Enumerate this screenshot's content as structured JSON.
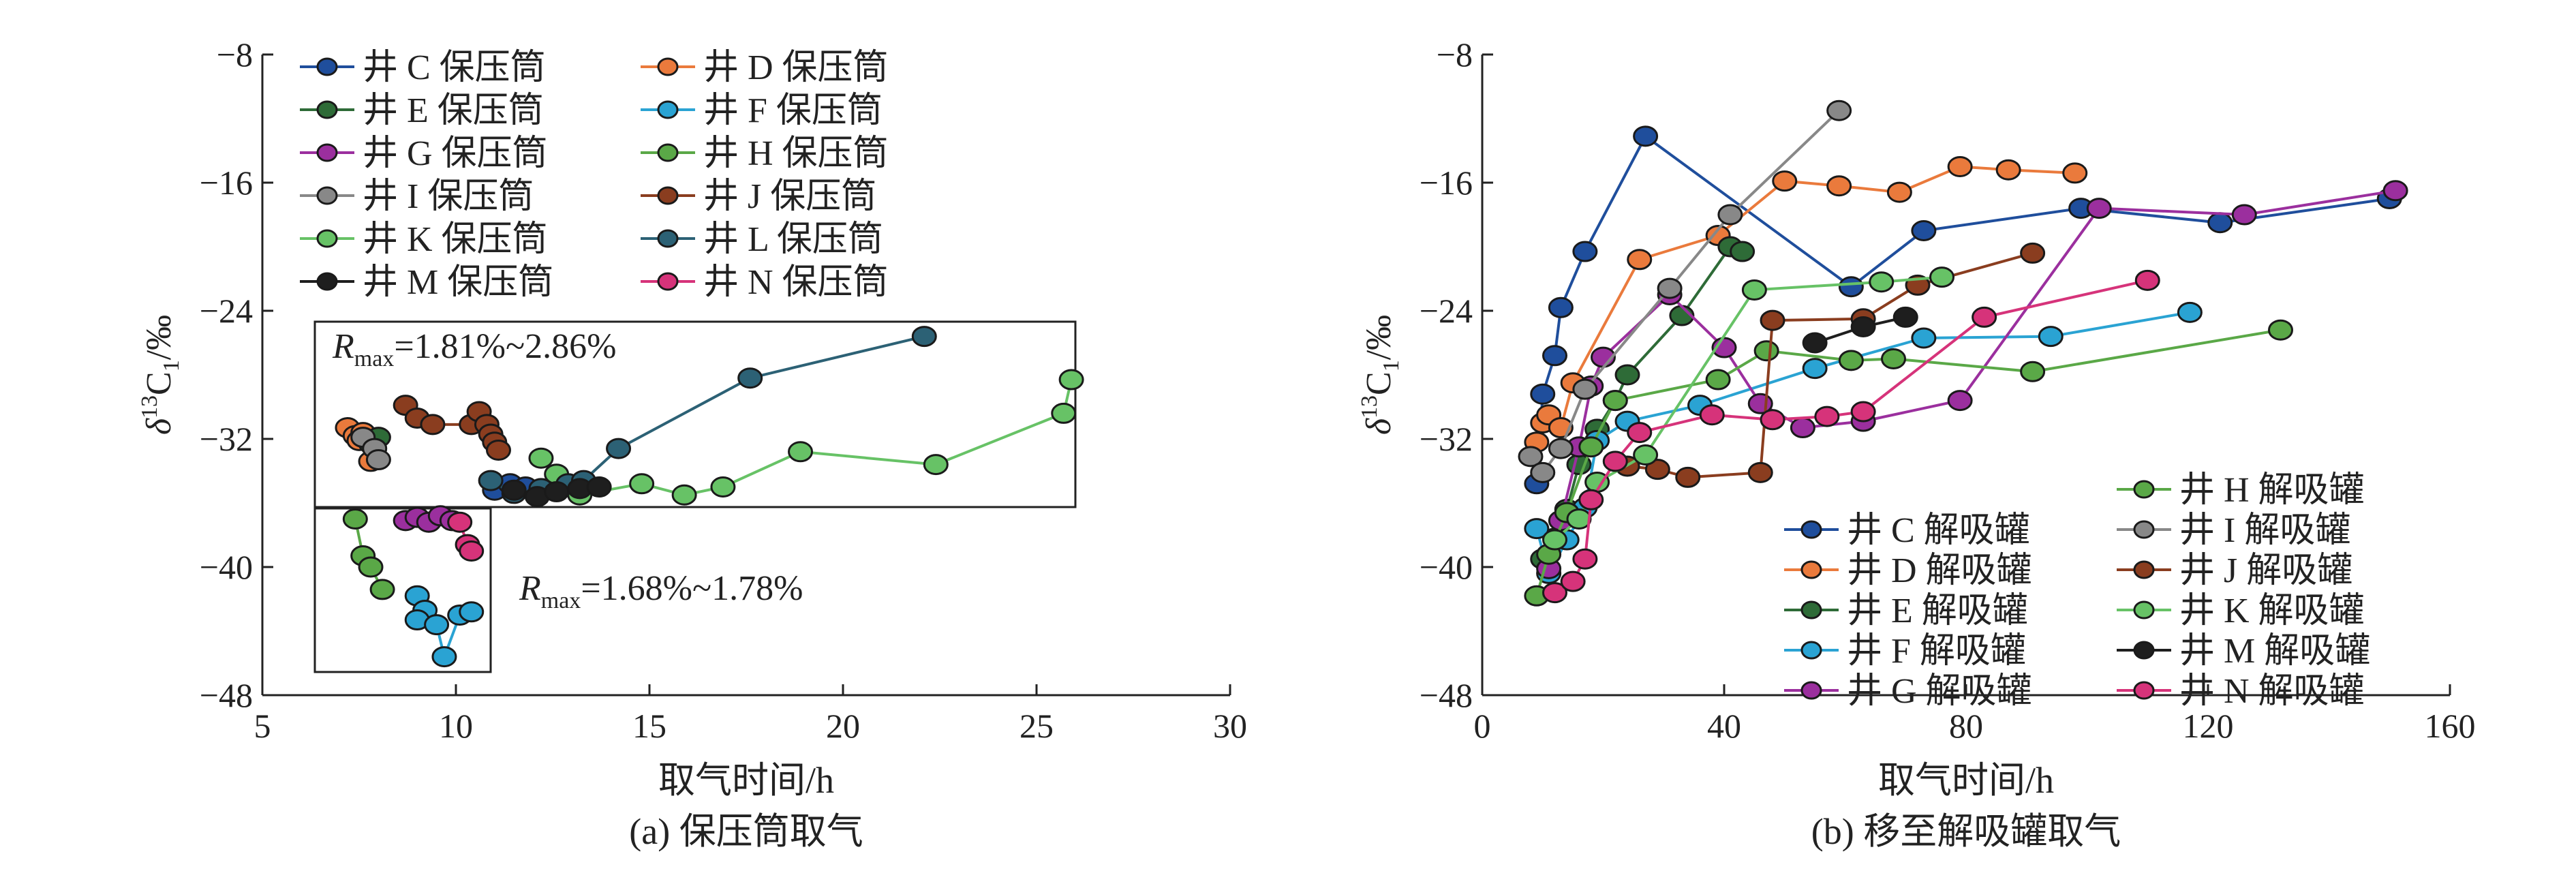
{
  "figure": {
    "colors": {
      "C": "#1f4e9c",
      "D": "#ea7a3c",
      "E": "#2e6b37",
      "F": "#2aa3d3",
      "G": "#9b2f9e",
      "H": "#5aa847",
      "I": "#888888",
      "J": "#8a3d1f",
      "K": "#67c266",
      "L": "#2c6175",
      "M": "#1e1e1e",
      "N": "#d6337a"
    }
  },
  "chart_data": [
    {
      "type": "scatter",
      "caption": "(a) 保压筒取气",
      "xlabel": "取气时间/h",
      "ylabel": "δ13C1/‰",
      "ylabel_parts": {
        "prefix": "δ",
        "sup": "13",
        "main": "C",
        "sub": "1",
        "suffix": "/‰"
      },
      "xlim": [
        5,
        30
      ],
      "ylim": [
        -48,
        -8
      ],
      "xticks": [
        5,
        10,
        15,
        20,
        25,
        30
      ],
      "yticks": [
        -8,
        -16,
        -24,
        -32,
        -40,
        -48
      ],
      "grid": false,
      "legend_position": "top-left",
      "annotations": [
        {
          "text_main": "R",
          "text_sub": "max",
          "text_rest": "=1.81%~2.86%"
        },
        {
          "text_main": "R",
          "text_sub": "max",
          "text_rest": "=1.68%~1.78%"
        }
      ],
      "series": [
        {
          "key": "C",
          "name": "井 C 保压筒",
          "points": [
            [
              11.0,
              -35.2
            ],
            [
              11.4,
              -34.8
            ],
            [
              11.8,
              -35.0
            ]
          ]
        },
        {
          "key": "D",
          "name": "井 D 保压筒",
          "points": [
            [
              7.2,
              -31.3
            ],
            [
              7.4,
              -31.8
            ],
            [
              7.5,
              -32.1
            ],
            [
              7.6,
              -31.6
            ],
            [
              7.8,
              -33.4
            ]
          ]
        },
        {
          "key": "E",
          "name": "井 E 保压筒",
          "points": [
            [
              7.8,
              -32.3
            ],
            [
              8.0,
              -31.9
            ]
          ]
        },
        {
          "key": "F",
          "name": "井 F 保压筒",
          "points": [
            [
              9.0,
              -41.8
            ],
            [
              9.2,
              -42.7
            ],
            [
              9.0,
              -43.3
            ],
            [
              9.5,
              -43.6
            ],
            [
              9.7,
              -45.6
            ],
            [
              10.1,
              -43.0
            ],
            [
              10.4,
              -42.8
            ]
          ]
        },
        {
          "key": "G",
          "name": "井 G 保压筒",
          "points": [
            [
              8.7,
              -37.1
            ],
            [
              9.0,
              -36.9
            ],
            [
              9.3,
              -37.2
            ],
            [
              9.6,
              -36.8
            ],
            [
              9.9,
              -37.1
            ]
          ]
        },
        {
          "key": "H",
          "name": "井 H 保压筒",
          "points": [
            [
              7.4,
              -37.0
            ],
            [
              7.6,
              -39.3
            ],
            [
              7.8,
              -40.0
            ],
            [
              8.1,
              -41.4
            ]
          ]
        },
        {
          "key": "I",
          "name": "井 I 保压筒",
          "points": [
            [
              7.6,
              -31.9
            ],
            [
              7.9,
              -32.6
            ],
            [
              8.0,
              -33.3
            ]
          ]
        },
        {
          "key": "J",
          "name": "井 J 保压筒",
          "points": [
            [
              8.7,
              -29.9
            ],
            [
              9.0,
              -30.7
            ],
            [
              9.4,
              -31.1
            ],
            [
              10.4,
              -31.1
            ],
            [
              10.6,
              -30.3
            ],
            [
              10.8,
              -31.1
            ],
            [
              10.9,
              -31.7
            ],
            [
              11.0,
              -32.2
            ],
            [
              11.1,
              -32.7
            ]
          ]
        },
        {
          "key": "K",
          "name": "井 K 保压筒",
          "points": [
            [
              12.2,
              -33.2
            ],
            [
              12.6,
              -34.2
            ],
            [
              13.2,
              -35.5
            ],
            [
              14.8,
              -34.8
            ],
            [
              15.9,
              -35.5
            ],
            [
              16.9,
              -35.0
            ],
            [
              18.9,
              -32.8
            ],
            [
              22.4,
              -33.6
            ],
            [
              25.7,
              -30.4
            ],
            [
              25.9,
              -28.3
            ]
          ]
        },
        {
          "key": "L",
          "name": "井 L 保压筒",
          "points": [
            [
              10.9,
              -34.6
            ],
            [
              11.5,
              -35.4
            ],
            [
              12.2,
              -35.1
            ],
            [
              12.9,
              -34.8
            ],
            [
              13.3,
              -34.6
            ],
            [
              14.2,
              -32.6
            ],
            [
              17.6,
              -28.2
            ],
            [
              22.1,
              -25.6
            ]
          ]
        },
        {
          "key": "M",
          "name": "井 M 保压筒",
          "points": [
            [
              11.5,
              -35.2
            ],
            [
              12.1,
              -35.6
            ],
            [
              12.6,
              -35.3
            ],
            [
              13.2,
              -35.1
            ],
            [
              13.7,
              -35.0
            ]
          ]
        },
        {
          "key": "N",
          "name": "井 N 保压筒",
          "points": [
            [
              10.1,
              -37.2
            ],
            [
              10.3,
              -38.6
            ],
            [
              10.4,
              -39.0
            ]
          ]
        }
      ]
    },
    {
      "type": "scatter",
      "caption": "(b) 移至解吸罐取气",
      "xlabel": "取气时间/h",
      "ylabel": "δ13C1/‰",
      "ylabel_parts": {
        "prefix": "δ",
        "sup": "13",
        "main": "C",
        "sub": "1",
        "suffix": "/‰"
      },
      "xlim": [
        0,
        160
      ],
      "ylim": [
        -48,
        -8
      ],
      "xticks": [
        0,
        40,
        80,
        120,
        160
      ],
      "yticks": [
        -8,
        -16,
        -24,
        -32,
        -40,
        -48
      ],
      "grid": false,
      "legend_position": "bottom-right",
      "series": [
        {
          "key": "C",
          "name": "井 C 解吸罐",
          "points": [
            [
              9,
              -34.8
            ],
            [
              10,
              -29.2
            ],
            [
              12,
              -26.8
            ],
            [
              13,
              -23.8
            ],
            [
              17,
              -20.3
            ],
            [
              27,
              -13.1
            ],
            [
              61,
              -22.5
            ],
            [
              73,
              -19.0
            ],
            [
              99,
              -17.6
            ],
            [
              122,
              -18.5
            ],
            [
              150,
              -17.0
            ]
          ]
        },
        {
          "key": "D",
          "name": "井 D 解吸罐",
          "points": [
            [
              9,
              -32.2
            ],
            [
              10,
              -31.0
            ],
            [
              11,
              -30.5
            ],
            [
              13,
              -31.3
            ],
            [
              15,
              -28.5
            ],
            [
              26,
              -20.8
            ],
            [
              39,
              -19.3
            ],
            [
              50,
              -15.9
            ],
            [
              59,
              -16.2
            ],
            [
              69,
              -16.6
            ],
            [
              79,
              -15.0
            ],
            [
              87,
              -15.2
            ],
            [
              98,
              -15.4
            ]
          ]
        },
        {
          "key": "E",
          "name": "井 E 解吸罐",
          "points": [
            [
              10,
              -39.5
            ],
            [
              12,
              -38.2
            ],
            [
              14,
              -36.4
            ],
            [
              16,
              -33.6
            ],
            [
              19,
              -31.4
            ],
            [
              22,
              -29.6
            ],
            [
              24,
              -28.0
            ],
            [
              33,
              -24.3
            ],
            [
              41,
              -20.0
            ],
            [
              43,
              -20.3
            ]
          ]
        },
        {
          "key": "F",
          "name": "井 F 解吸罐",
          "points": [
            [
              9,
              -37.6
            ],
            [
              11,
              -40.4
            ],
            [
              14,
              -38.3
            ],
            [
              17,
              -36.3
            ],
            [
              19,
              -32.1
            ],
            [
              24,
              -30.9
            ],
            [
              36,
              -29.9
            ],
            [
              55,
              -27.6
            ],
            [
              73,
              -25.7
            ],
            [
              94,
              -25.6
            ],
            [
              117,
              -24.1
            ]
          ]
        },
        {
          "key": "G",
          "name": "井 G 解吸罐",
          "points": [
            [
              11,
              -40.1
            ],
            [
              13,
              -37.1
            ],
            [
              16,
              -32.5
            ],
            [
              18,
              -28.7
            ],
            [
              20,
              -26.9
            ],
            [
              31,
              -23.0
            ],
            [
              40,
              -26.3
            ],
            [
              46,
              -29.8
            ],
            [
              53,
              -31.3
            ],
            [
              63,
              -30.9
            ],
            [
              79,
              -29.6
            ],
            [
              102,
              -17.6
            ],
            [
              126,
              -18.0
            ],
            [
              151,
              -16.5
            ]
          ]
        },
        {
          "key": "H",
          "name": "井 H 解吸罐",
          "points": [
            [
              9,
              -41.8
            ],
            [
              11,
              -39.2
            ],
            [
              14,
              -36.6
            ],
            [
              18,
              -32.5
            ],
            [
              22,
              -29.6
            ],
            [
              39,
              -28.3
            ],
            [
              47,
              -26.5
            ],
            [
              61,
              -27.1
            ],
            [
              68,
              -27.0
            ],
            [
              91,
              -27.8
            ],
            [
              132,
              -25.2
            ]
          ]
        },
        {
          "key": "I",
          "name": "井 I 解吸罐",
          "points": [
            [
              8,
              -33.1
            ],
            [
              10,
              -34.1
            ],
            [
              13,
              -32.6
            ],
            [
              17,
              -28.9
            ],
            [
              31,
              -22.6
            ],
            [
              41,
              -18.0
            ],
            [
              59,
              -11.5
            ]
          ]
        },
        {
          "key": "J",
          "name": "井 J 解吸罐",
          "points": [
            [
              24,
              -33.7
            ],
            [
              29,
              -33.9
            ],
            [
              34,
              -34.4
            ],
            [
              46,
              -34.1
            ],
            [
              48,
              -24.6
            ],
            [
              63,
              -24.5
            ],
            [
              72,
              -22.4
            ],
            [
              91,
              -20.4
            ]
          ]
        },
        {
          "key": "K",
          "name": "井 K 解吸罐",
          "points": [
            [
              12,
              -38.3
            ],
            [
              16,
              -37.0
            ],
            [
              19,
              -34.7
            ],
            [
              27,
              -33.0
            ],
            [
              45,
              -22.7
            ],
            [
              66,
              -22.2
            ],
            [
              76,
              -21.9
            ]
          ]
        },
        {
          "key": "M",
          "name": "井 M 解吸罐",
          "points": [
            [
              55,
              -26.0
            ],
            [
              63,
              -25.0
            ],
            [
              70,
              -24.4
            ]
          ]
        },
        {
          "key": "N",
          "name": "井 N 解吸罐",
          "points": [
            [
              12,
              -41.6
            ],
            [
              15,
              -40.9
            ],
            [
              17,
              -39.5
            ],
            [
              18,
              -35.8
            ],
            [
              22,
              -33.4
            ],
            [
              26,
              -31.6
            ],
            [
              38,
              -30.5
            ],
            [
              48,
              -30.8
            ],
            [
              57,
              -30.6
            ],
            [
              63,
              -30.3
            ],
            [
              83,
              -24.4
            ],
            [
              110,
              -22.1
            ]
          ]
        }
      ]
    }
  ]
}
